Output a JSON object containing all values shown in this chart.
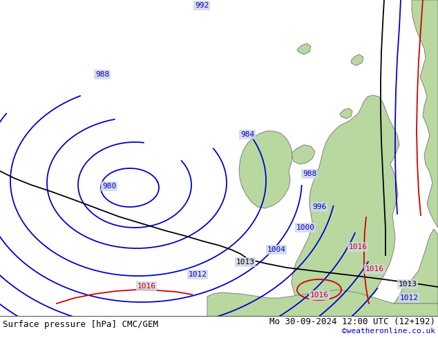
{
  "title_left": "Surface pressure [hPa] CMC/GEM",
  "title_right": "Mo 30-09-2024 12:00 UTC (12+192)",
  "credit": "©weatheronline.co.uk",
  "ocean_color": "#d0d8e4",
  "land_color": "#b8d8a0",
  "coastline_color": "#808080",
  "blue": "#0000cc",
  "black": "#000000",
  "red": "#cc0000",
  "white": "#ffffff",
  "title_fontsize": 9,
  "credit_fontsize": 8,
  "label_fontsize": 8,
  "lw_iso": 1.3,
  "lw_coast": 0.7
}
